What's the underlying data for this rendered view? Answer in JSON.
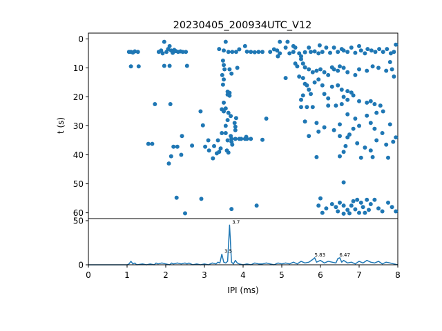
{
  "chart_data": [
    {
      "type": "scatter",
      "title": "20230405_200934UTC_V12",
      "xlabel": "",
      "ylabel": "t (s)",
      "xlim": [
        0,
        8
      ],
      "ylim": [
        62,
        -2
      ],
      "yticks": [
        "0",
        "10",
        "20",
        "30",
        "40",
        "50",
        "60"
      ],
      "color": "#1f77b4",
      "points": [
        [
          1.05,
          4.5
        ],
        [
          1.1,
          4.5
        ],
        [
          1.15,
          4.7
        ],
        [
          1.2,
          4.3
        ],
        [
          1.28,
          4.5
        ],
        [
          1.1,
          9.5
        ],
        [
          1.3,
          9.5
        ],
        [
          1.82,
          4.5
        ],
        [
          1.88,
          4.0
        ],
        [
          1.92,
          5.0
        ],
        [
          1.96,
          1.0
        ],
        [
          2.02,
          4.5
        ],
        [
          2.06,
          3.5
        ],
        [
          2.1,
          2.5
        ],
        [
          2.14,
          4.0
        ],
        [
          2.18,
          4.8
        ],
        [
          2.22,
          3.8
        ],
        [
          2.26,
          4.2
        ],
        [
          2.32,
          4.5
        ],
        [
          2.38,
          4.3
        ],
        [
          2.44,
          4.5
        ],
        [
          2.52,
          4.5
        ],
        [
          2.1,
          9.3
        ],
        [
          1.96,
          9.3
        ],
        [
          2.55,
          9.3
        ],
        [
          3.38,
          3.5
        ],
        [
          3.5,
          4.0
        ],
        [
          3.55,
          1.0
        ],
        [
          3.62,
          4.5
        ],
        [
          3.72,
          4.5
        ],
        [
          3.82,
          4.5
        ],
        [
          3.9,
          3.6
        ],
        [
          3.48,
          7.5
        ],
        [
          3.5,
          9.0
        ],
        [
          3.52,
          10.5
        ],
        [
          3.46,
          12.5
        ],
        [
          3.5,
          14.0
        ],
        [
          3.48,
          15.8
        ],
        [
          3.65,
          10.5
        ],
        [
          3.7,
          12.0
        ],
        [
          3.85,
          10.0
        ],
        [
          3.6,
          18.2
        ],
        [
          3.65,
          18.6
        ],
        [
          3.6,
          19.2
        ],
        [
          3.65,
          19.6
        ],
        [
          3.5,
          22.0
        ],
        [
          3.45,
          24.3
        ],
        [
          3.5,
          25.0
        ],
        [
          3.55,
          24.0
        ],
        [
          3.62,
          25.5
        ],
        [
          3.68,
          26.6
        ],
        [
          3.6,
          28.0
        ],
        [
          3.55,
          30.0
        ],
        [
          3.82,
          27.3
        ],
        [
          3.78,
          29.0
        ],
        [
          3.8,
          30.3
        ],
        [
          3.8,
          31.5
        ],
        [
          3.45,
          32.5
        ],
        [
          3.55,
          32.5
        ],
        [
          3.68,
          33.5
        ],
        [
          3.7,
          34.5
        ],
        [
          3.7,
          35.5
        ],
        [
          3.72,
          36.5
        ],
        [
          3.8,
          34.5
        ],
        [
          3.9,
          34.5
        ],
        [
          3.95,
          34.5
        ],
        [
          4.05,
          34.5
        ],
        [
          4.1,
          34.5
        ],
        [
          4.2,
          34.5
        ],
        [
          3.6,
          35.0
        ],
        [
          3.35,
          35.0
        ],
        [
          3.25,
          37.0
        ],
        [
          3.42,
          37.8
        ],
        [
          3.58,
          38.5
        ],
        [
          3.62,
          39.2
        ],
        [
          2.9,
          25.0
        ],
        [
          2.96,
          29.8
        ],
        [
          2.42,
          33.5
        ],
        [
          2.3,
          37.2
        ],
        [
          2.2,
          37.2
        ],
        [
          2.68,
          36.8
        ],
        [
          2.14,
          40.5
        ],
        [
          2.4,
          40.0
        ],
        [
          2.08,
          43.0
        ],
        [
          1.55,
          36.2
        ],
        [
          1.65,
          36.2
        ],
        [
          1.72,
          22.5
        ],
        [
          2.12,
          22.5
        ],
        [
          3.1,
          35.0
        ],
        [
          3.12,
          38.5
        ],
        [
          3.02,
          37.2
        ],
        [
          3.22,
          41.2
        ],
        [
          3.32,
          39.5
        ],
        [
          3.38,
          39.0
        ],
        [
          4.08,
          33.8
        ],
        [
          4.5,
          34.8
        ],
        [
          4.5,
          4.5
        ],
        [
          4.4,
          4.5
        ],
        [
          4.3,
          4.6
        ],
        [
          4.2,
          4.5
        ],
        [
          4.1,
          4.4
        ],
        [
          4.7,
          4.5
        ],
        [
          4.8,
          3.6
        ],
        [
          4.88,
          4.0
        ],
        [
          4.95,
          5.0
        ],
        [
          4.9,
          6.0
        ],
        [
          4.95,
          1.0
        ],
        [
          4.05,
          2.5
        ],
        [
          2.28,
          54.8
        ],
        [
          2.5,
          60.2
        ],
        [
          2.92,
          55.2
        ],
        [
          3.7,
          58.7
        ],
        [
          4.35,
          57.5
        ],
        [
          4.6,
          27.5
        ],
        [
          5.1,
          3.0
        ],
        [
          5.2,
          5.0
        ],
        [
          5.3,
          4.5
        ],
        [
          5.35,
          8.5
        ],
        [
          5.45,
          5.0
        ],
        [
          5.5,
          7.0
        ],
        [
          5.55,
          8.5
        ],
        [
          5.6,
          4.6
        ],
        [
          5.7,
          3.0
        ],
        [
          5.75,
          4.5
        ],
        [
          5.85,
          4.3
        ],
        [
          5.95,
          5.0
        ],
        [
          5.98,
          2.2
        ],
        [
          6.05,
          4.5
        ],
        [
          6.15,
          3.0
        ],
        [
          6.25,
          4.8
        ],
        [
          6.35,
          3.0
        ],
        [
          6.45,
          4.5
        ],
        [
          6.55,
          3.5
        ],
        [
          6.6,
          4.0
        ],
        [
          6.7,
          4.5
        ],
        [
          6.8,
          3.0
        ],
        [
          6.9,
          4.8
        ],
        [
          7.0,
          2.5
        ],
        [
          7.05,
          4.0
        ],
        [
          7.15,
          5.0
        ],
        [
          7.22,
          3.5
        ],
        [
          7.32,
          4.0
        ],
        [
          7.42,
          4.5
        ],
        [
          7.52,
          3.5
        ],
        [
          7.62,
          4.5
        ],
        [
          7.72,
          3.5
        ],
        [
          7.82,
          5.0
        ],
        [
          7.9,
          4.5
        ],
        [
          7.95,
          2.0
        ],
        [
          5.3,
          2.5
        ],
        [
          5.15,
          1.0
        ],
        [
          5.35,
          3.0
        ],
        [
          5.5,
          6.0
        ],
        [
          5.4,
          9.5
        ],
        [
          5.6,
          9.8
        ],
        [
          5.7,
          10.5
        ],
        [
          5.8,
          11.5
        ],
        [
          5.9,
          11.0
        ],
        [
          6.0,
          10.5
        ],
        [
          6.1,
          11.5
        ],
        [
          6.2,
          12.5
        ],
        [
          6.3,
          9.8
        ],
        [
          6.35,
          10.5
        ],
        [
          6.45,
          11.0
        ],
        [
          6.5,
          9.5
        ],
        [
          6.6,
          10.0
        ],
        [
          6.7,
          11.5
        ],
        [
          6.9,
          12.5
        ],
        [
          7.0,
          10.5
        ],
        [
          7.2,
          11.0
        ],
        [
          7.35,
          9.5
        ],
        [
          7.5,
          10.0
        ],
        [
          7.7,
          11.0
        ],
        [
          7.8,
          8.0
        ],
        [
          7.85,
          10.5
        ],
        [
          7.9,
          13.0
        ],
        [
          5.55,
          13.5
        ],
        [
          5.6,
          15.5
        ],
        [
          5.65,
          16.0
        ],
        [
          5.7,
          17.5
        ],
        [
          5.75,
          19.0
        ],
        [
          5.85,
          15.0
        ],
        [
          5.95,
          14.0
        ],
        [
          6.05,
          16.0
        ],
        [
          6.1,
          19.0
        ],
        [
          6.2,
          20.5
        ],
        [
          6.3,
          16.5
        ],
        [
          6.45,
          16.0
        ],
        [
          6.55,
          17.5
        ],
        [
          6.6,
          20.0
        ],
        [
          6.7,
          18.0
        ],
        [
          6.85,
          19.5
        ],
        [
          7.0,
          21.5
        ],
        [
          7.2,
          22.0
        ],
        [
          7.3,
          21.5
        ],
        [
          7.4,
          22.5
        ],
        [
          7.55,
          23.0
        ],
        [
          7.62,
          25.0
        ],
        [
          7.45,
          25.5
        ],
        [
          7.2,
          26.5
        ],
        [
          6.9,
          27.5
        ],
        [
          6.7,
          26.0
        ],
        [
          6.5,
          29.5
        ],
        [
          6.35,
          31.5
        ],
        [
          6.1,
          30.5
        ],
        [
          5.95,
          32.0
        ],
        [
          5.7,
          33.5
        ],
        [
          5.9,
          29.0
        ],
        [
          5.6,
          28.5
        ],
        [
          6.5,
          33.5
        ],
        [
          6.7,
          34.0
        ],
        [
          6.65,
          37.0
        ],
        [
          6.95,
          36.0
        ],
        [
          7.15,
          37.5
        ],
        [
          7.3,
          38.5
        ],
        [
          7.45,
          35.0
        ],
        [
          7.6,
          32.5
        ],
        [
          7.7,
          36.5
        ],
        [
          7.88,
          35.5
        ],
        [
          7.95,
          34.0
        ],
        [
          7.75,
          41.0
        ],
        [
          7.35,
          40.8
        ],
        [
          7.05,
          41.0
        ],
        [
          6.6,
          39.0
        ],
        [
          6.5,
          40.5
        ],
        [
          5.9,
          40.8
        ],
        [
          5.5,
          23.5
        ],
        [
          5.65,
          23.5
        ],
        [
          5.8,
          23.5
        ],
        [
          5.55,
          19.5
        ],
        [
          5.45,
          13.0
        ],
        [
          5.1,
          13.5
        ],
        [
          5.5,
          21.0
        ],
        [
          6.2,
          23.0
        ],
        [
          6.4,
          23.0
        ],
        [
          6.55,
          22.5
        ],
        [
          6.7,
          21.0
        ],
        [
          6.8,
          18.5
        ],
        [
          7.0,
          30.0
        ],
        [
          7.3,
          29.0
        ],
        [
          7.4,
          31.0
        ],
        [
          7.8,
          29.5
        ],
        [
          6.75,
          33.0
        ],
        [
          6.85,
          31.0
        ],
        [
          6.6,
          49.5
        ],
        [
          6.0,
          55.0
        ],
        [
          6.15,
          58.5
        ],
        [
          5.95,
          57.5
        ],
        [
          6.05,
          60.0
        ],
        [
          6.3,
          57.0
        ],
        [
          6.4,
          58.0
        ],
        [
          6.5,
          56.5
        ],
        [
          6.6,
          57.5
        ],
        [
          6.7,
          59.0
        ],
        [
          6.8,
          57.5
        ],
        [
          6.9,
          58.8
        ],
        [
          6.95,
          55.5
        ],
        [
          7.05,
          56.5
        ],
        [
          7.1,
          58.0
        ],
        [
          7.2,
          55.5
        ],
        [
          7.3,
          57.0
        ],
        [
          7.4,
          55.5
        ],
        [
          7.5,
          58.5
        ],
        [
          7.6,
          59.5
        ],
        [
          7.75,
          56.5
        ],
        [
          7.85,
          58.0
        ],
        [
          7.95,
          59.5
        ],
        [
          7.25,
          59.0
        ],
        [
          7.0,
          60.0
        ],
        [
          6.6,
          60.3
        ],
        [
          6.75,
          60.2
        ],
        [
          7.15,
          60.0
        ],
        [
          6.85,
          56.0
        ],
        [
          6.45,
          59.5
        ]
      ]
    },
    {
      "type": "line",
      "title": "",
      "xlabel": "IPI (ms)",
      "ylabel": "",
      "xlim": [
        0,
        8
      ],
      "ylim": [
        0,
        50
      ],
      "xticks": [
        "0",
        "1",
        "2",
        "3",
        "4",
        "5",
        "6",
        "7",
        "8"
      ],
      "yticks": [
        "0",
        "50"
      ],
      "color": "#1f77b4",
      "peaks": [
        {
          "x": 3.5,
          "y": 12,
          "label": "3.5"
        },
        {
          "x": 3.7,
          "y": 45,
          "label": "3.7"
        },
        {
          "x": 5.83,
          "y": 8,
          "label": "5.83"
        },
        {
          "x": 6.47,
          "y": 8,
          "label": "6.47"
        }
      ],
      "series": [
        {
          "x": [
            0,
            0.5,
            1.0,
            1.05,
            1.1,
            1.15,
            1.2,
            1.25,
            1.4,
            1.5,
            1.6,
            1.7,
            1.75,
            1.8,
            1.9,
            2.0,
            2.1,
            2.15,
            2.2,
            2.3,
            2.4,
            2.5,
            2.55,
            2.6,
            2.7,
            2.8,
            2.9,
            3.0,
            3.1,
            3.2,
            3.3,
            3.35,
            3.4,
            3.45,
            3.5,
            3.55,
            3.6,
            3.65,
            3.7,
            3.75,
            3.8,
            3.85,
            3.9,
            4.0,
            4.1,
            4.2,
            4.3,
            4.4,
            4.5,
            4.6,
            4.7,
            4.8,
            4.9,
            5.0,
            5.1,
            5.2,
            5.3,
            5.4,
            5.5,
            5.6,
            5.7,
            5.8,
            5.85,
            5.9,
            6.0,
            6.1,
            6.2,
            6.3,
            6.4,
            6.45,
            6.5,
            6.55,
            6.6,
            6.7,
            6.8,
            6.9,
            7.0,
            7.1,
            7.2,
            7.3,
            7.4,
            7.5,
            7.6,
            7.7,
            7.8,
            7.9,
            8.0
          ],
          "y": [
            0,
            0,
            0,
            1,
            4,
            1,
            2,
            0,
            1,
            0,
            1,
            0,
            2,
            1,
            2,
            1,
            0,
            2,
            1,
            2,
            1,
            2,
            1,
            2,
            0,
            1,
            0,
            1,
            0,
            2,
            1,
            3,
            2,
            12,
            3,
            2,
            4,
            45,
            3,
            1,
            5,
            2,
            1,
            0,
            1,
            0,
            2,
            1,
            1,
            2,
            1,
            0,
            2,
            1,
            2,
            1,
            3,
            1,
            4,
            2,
            3,
            6,
            8,
            3,
            5,
            2,
            4,
            3,
            2,
            7,
            8,
            3,
            5,
            2,
            3,
            1,
            4,
            2,
            5,
            3,
            2,
            4,
            1,
            3,
            2,
            1,
            0
          ]
        }
      ]
    }
  ]
}
